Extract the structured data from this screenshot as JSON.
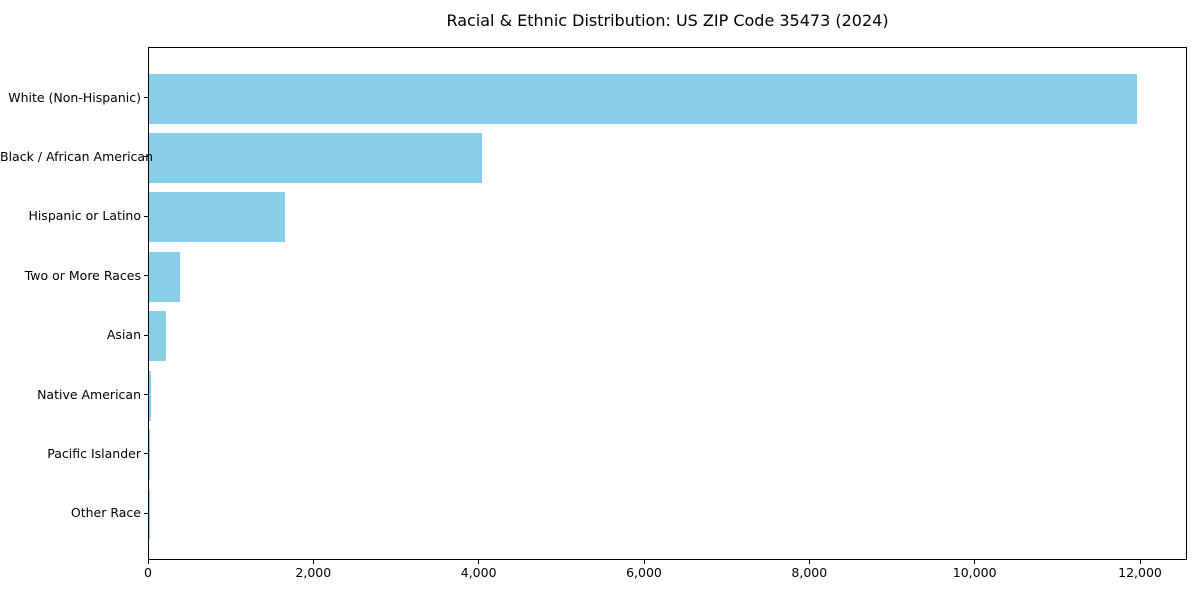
{
  "chart_data": {
    "type": "bar",
    "orientation": "horizontal",
    "title": "Racial & Ethnic Distribution: US ZIP Code 35473 (2024)",
    "categories": [
      "White (Non-Hispanic)",
      "Black / African American",
      "Hispanic or Latino",
      "Two or More Races",
      "Asian",
      "Native American",
      "Pacific Islander",
      "Other Race"
    ],
    "values": [
      11950,
      4030,
      1650,
      375,
      210,
      25,
      5,
      3
    ],
    "xlabel": "",
    "ylabel": "",
    "xlim": [
      0,
      12568
    ],
    "x_tick_values": [
      0,
      2000,
      4000,
      6000,
      8000,
      10000,
      12000
    ],
    "x_tick_labels": [
      "0",
      "2,000",
      "4,000",
      "6,000",
      "8,000",
      "10,000",
      "12,000"
    ],
    "bar_color": "#87CEEB",
    "background_color": "#FFFFFF",
    "axis_color": "#000000",
    "grid": false,
    "legend": "none"
  }
}
